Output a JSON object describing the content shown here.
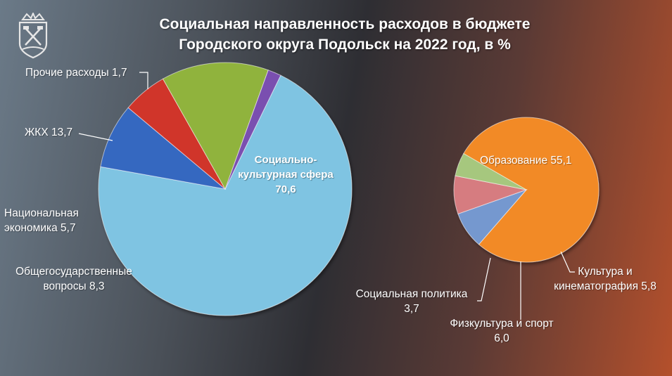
{
  "title_line1": "Социальная направленность расходов в бюджете",
  "title_line2": "Городского округа Подольск на 2022 год, в %",
  "colors": {
    "social": "#7fc4e2",
    "other": "#7a4fb0",
    "housing": "#90b33e",
    "economy": "#d0342c",
    "government": "#3667c0",
    "education": "#f28a26",
    "culture_pie": "#7598cf",
    "sport": "#d67b80",
    "social_policy": "#a6c77e"
  },
  "labels": {
    "other_name": "Прочие расходы 1,7",
    "housing_name": "ЖКХ 13,7",
    "economy_l1": "Национальная",
    "economy_l2": "экономика 5,7",
    "gov_l1": "Общегосударственные",
    "gov_l2": "вопросы 8,3",
    "social_l1": "Социально-",
    "social_l2": "культурная сфера",
    "social_l3": "70,6",
    "education": "Образование 55,1",
    "culture_l1": "Культура и",
    "culture_l2": "кинематография 5,8",
    "sport_l1": "Физкультура и спорт",
    "sport_l2": "6,0",
    "socpol_l1": "Социальная политика",
    "socpol_l2": "3,7"
  },
  "chart_data": [
    {
      "type": "pie",
      "categories": [
        "Социально-культурная сфера",
        "Общегосударственные вопросы",
        "Национальная экономика",
        "ЖКХ",
        "Прочие расходы"
      ],
      "values": [
        70.6,
        8.3,
        5.7,
        13.7,
        1.7
      ],
      "title": "Социальная направленность расходов в бюджете Городского округа Подольск на 2022 год, в %"
    },
    {
      "type": "pie",
      "categories": [
        "Образование",
        "Культура и кинематография",
        "Физкультура и спорт",
        "Социальная политика"
      ],
      "values": [
        55.1,
        5.8,
        6.0,
        3.7
      ]
    }
  ]
}
